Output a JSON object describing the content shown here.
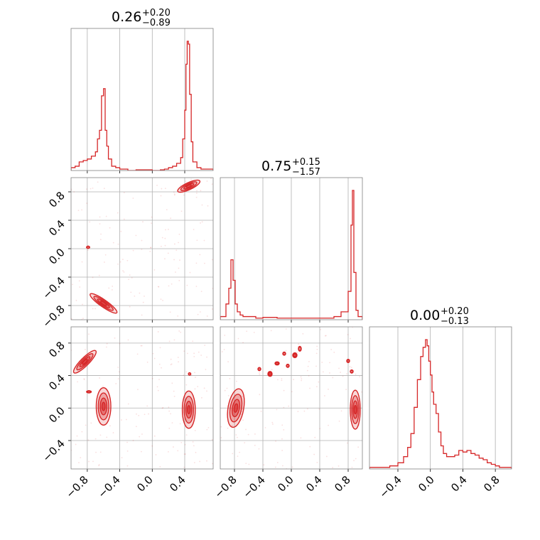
{
  "chart_data": {
    "type": "corner",
    "color": "#d62728",
    "panels": {
      "p00": {
        "type": "histogram",
        "title": {
          "value": "0.26",
          "upper": "+0.20",
          "lower": "−0.89"
        },
        "xlim": [
          -1.0,
          0.75
        ],
        "x_ticks": [
          -0.8,
          -0.4,
          0.0,
          0.4
        ],
        "bin_edges": [
          -1.0,
          -0.95,
          -0.9,
          -0.85,
          -0.8,
          -0.75,
          -0.7,
          -0.675,
          -0.65,
          -0.625,
          -0.6,
          -0.58,
          -0.56,
          -0.54,
          -0.5,
          -0.45,
          -0.4,
          -0.3,
          -0.2,
          -0.1,
          0.0,
          0.1,
          0.15,
          0.2,
          0.25,
          0.3,
          0.35,
          0.375,
          0.4,
          0.415,
          0.43,
          0.445,
          0.46,
          0.48,
          0.5,
          0.55,
          0.6,
          0.7,
          0.75
        ],
        "counts": [
          0.02,
          0.03,
          0.06,
          0.07,
          0.08,
          0.1,
          0.13,
          0.22,
          0.28,
          0.52,
          0.57,
          0.28,
          0.17,
          0.08,
          0.03,
          0.02,
          0.01,
          0.0,
          0.005,
          0.005,
          0.0,
          0.005,
          0.01,
          0.02,
          0.03,
          0.05,
          0.09,
          0.22,
          0.42,
          0.74,
          0.9,
          0.88,
          0.53,
          0.2,
          0.06,
          0.02,
          0.01,
          0.01
        ]
      },
      "p11": {
        "type": "histogram",
        "title": {
          "value": "0.75",
          "upper": "+0.15",
          "lower": "−1.57"
        },
        "xlim": [
          -1.0,
          1.0
        ],
        "x_ticks": [
          -0.8,
          -0.4,
          0.0,
          0.4,
          0.8
        ],
        "bin_edges": [
          -1.0,
          -0.92,
          -0.88,
          -0.85,
          -0.82,
          -0.79,
          -0.76,
          -0.72,
          -0.68,
          -0.6,
          -0.5,
          -0.4,
          -0.2,
          0.0,
          0.2,
          0.4,
          0.6,
          0.7,
          0.8,
          0.84,
          0.86,
          0.88,
          0.91,
          0.94,
          1.0
        ],
        "counts": [
          0.02,
          0.1,
          0.2,
          0.38,
          0.25,
          0.1,
          0.05,
          0.03,
          0.02,
          0.02,
          0.01,
          0.015,
          0.01,
          0.01,
          0.01,
          0.01,
          0.02,
          0.05,
          0.18,
          0.6,
          0.82,
          0.3,
          0.06,
          0.02
        ]
      },
      "p22": {
        "type": "histogram",
        "title": {
          "value": "0.00",
          "upper": "+0.20",
          "lower": "−0.13"
        },
        "xlim": [
          -0.75,
          1.0
        ],
        "x_ticks": [
          -0.4,
          0.0,
          0.4,
          0.8
        ],
        "bin_edges": [
          -0.75,
          -0.6,
          -0.5,
          -0.4,
          -0.33,
          -0.28,
          -0.24,
          -0.2,
          -0.16,
          -0.12,
          -0.09,
          -0.06,
          -0.04,
          -0.02,
          0.0,
          0.02,
          0.04,
          0.07,
          0.1,
          0.13,
          0.16,
          0.2,
          0.25,
          0.3,
          0.35,
          0.4,
          0.45,
          0.5,
          0.55,
          0.6,
          0.65,
          0.7,
          0.75,
          0.8,
          0.85,
          1.0
        ],
        "counts": [
          0.01,
          0.01,
          0.02,
          0.04,
          0.08,
          0.14,
          0.23,
          0.4,
          0.58,
          0.73,
          0.79,
          0.84,
          0.8,
          0.7,
          0.61,
          0.5,
          0.42,
          0.36,
          0.24,
          0.15,
          0.1,
          0.08,
          0.08,
          0.09,
          0.12,
          0.11,
          0.12,
          0.1,
          0.09,
          0.07,
          0.06,
          0.04,
          0.03,
          0.02,
          0.01
        ]
      },
      "p10": {
        "type": "kde2d",
        "xlim": [
          -1.0,
          0.75
        ],
        "ylim": [
          -1.0,
          1.0
        ],
        "y_ticks": [
          -0.8,
          -0.4,
          0.0,
          0.4,
          0.8
        ],
        "blobs": [
          {
            "cx": 0.45,
            "cy": 0.88,
            "rx": 0.15,
            "ry": 0.05,
            "rot": -25
          },
          {
            "cx": -0.6,
            "cy": -0.77,
            "rx": 0.2,
            "ry": 0.05,
            "rot": 35
          },
          {
            "cx": -0.79,
            "cy": 0.02,
            "rx": 0.02,
            "ry": 0.015,
            "rot": 0
          }
        ]
      },
      "p20": {
        "type": "kde2d",
        "xlim": [
          -1.0,
          0.75
        ],
        "ylim": [
          -0.75,
          1.0
        ],
        "y_ticks": [
          -0.4,
          0.0,
          0.4,
          0.8
        ],
        "blobs": [
          {
            "cx": -0.83,
            "cy": 0.57,
            "rx": 0.19,
            "ry": 0.05,
            "rot": -45
          },
          {
            "cx": -0.6,
            "cy": 0.02,
            "rx": 0.09,
            "ry": 0.23,
            "rot": 0
          },
          {
            "cx": 0.45,
            "cy": -0.02,
            "rx": 0.08,
            "ry": 0.23,
            "rot": 0
          },
          {
            "cx": 0.46,
            "cy": 0.42,
            "rx": 0.015,
            "ry": 0.015,
            "rot": 0
          },
          {
            "cx": -0.78,
            "cy": 0.2,
            "rx": 0.03,
            "ry": 0.01,
            "rot": 0
          }
        ]
      },
      "p21": {
        "type": "kde2d",
        "xlim": [
          -1.0,
          1.0
        ],
        "ylim": [
          -0.75,
          1.0
        ],
        "blobs": [
          {
            "cx": -0.78,
            "cy": 0.0,
            "rx": 0.11,
            "ry": 0.24,
            "rot": 10
          },
          {
            "cx": 0.9,
            "cy": -0.02,
            "rx": 0.07,
            "ry": 0.24,
            "rot": 0
          },
          {
            "cx": -0.3,
            "cy": 0.42,
            "rx": 0.03,
            "ry": 0.03,
            "rot": 0
          },
          {
            "cx": -0.2,
            "cy": 0.55,
            "rx": 0.03,
            "ry": 0.02,
            "rot": 0
          },
          {
            "cx": -0.1,
            "cy": 0.67,
            "rx": 0.02,
            "ry": 0.02,
            "rot": 0
          },
          {
            "cx": 0.05,
            "cy": 0.65,
            "rx": 0.03,
            "ry": 0.03,
            "rot": 0
          },
          {
            "cx": 0.12,
            "cy": 0.73,
            "rx": 0.02,
            "ry": 0.03,
            "rot": 0
          },
          {
            "cx": -0.05,
            "cy": 0.52,
            "rx": 0.02,
            "ry": 0.02,
            "rot": 0
          },
          {
            "cx": 0.8,
            "cy": 0.58,
            "rx": 0.02,
            "ry": 0.02,
            "rot": 0
          },
          {
            "cx": 0.85,
            "cy": 0.45,
            "rx": 0.02,
            "ry": 0.02,
            "rot": 0
          },
          {
            "cx": -0.45,
            "cy": 0.48,
            "rx": 0.02,
            "ry": 0.02,
            "rot": 0
          }
        ]
      }
    },
    "bottom_ticks": {
      "col0": [
        "−0.8",
        "−0.4",
        "0.0",
        "0.4"
      ],
      "col1": [
        "−0.8",
        "−0.4",
        "0.0",
        "0.4",
        "0.8"
      ],
      "col2": [
        "−0.4",
        "0.0",
        "0.4",
        "0.8"
      ]
    },
    "left_ticks": {
      "row1": [
        "−0.8",
        "−0.4",
        "0.0",
        "0.4",
        "0.8"
      ],
      "row2": [
        "−0.4",
        "0.0",
        "0.4",
        "0.8"
      ]
    }
  }
}
